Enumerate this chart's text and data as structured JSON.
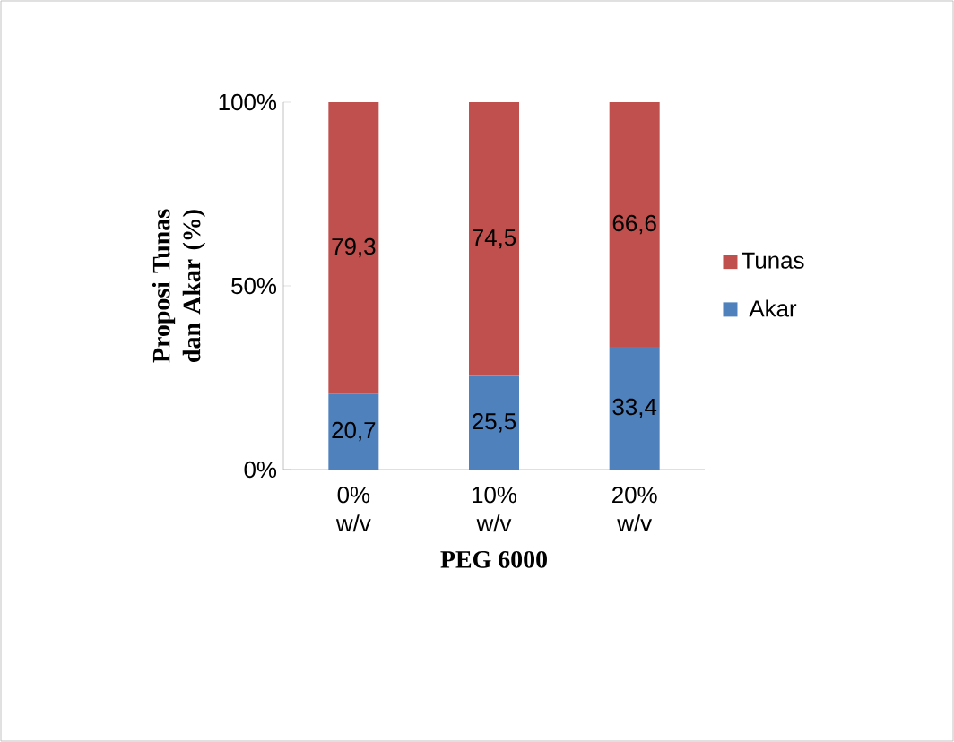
{
  "chart_data": {
    "type": "bar",
    "stacked": true,
    "xlabel": "PEG 6000",
    "ylabel": "Proposi Tunas dan Akar (%)",
    "categories": [
      "0% w/v",
      "10% w/v",
      "20% w/v"
    ],
    "series": [
      {
        "name": "Akar",
        "color": "#4f81bd",
        "values": [
          20.7,
          25.5,
          33.4
        ],
        "value_labels": [
          "20,7",
          "25,5",
          "33,4"
        ]
      },
      {
        "name": "Tunas",
        "color": "#c0504d",
        "values": [
          79.3,
          74.5,
          66.6
        ],
        "value_labels": [
          "79,3",
          "74,5",
          "66,6"
        ]
      }
    ],
    "ylim": [
      0,
      100
    ],
    "yticks": [
      {
        "value": 0,
        "label": "0%"
      },
      {
        "value": 50,
        "label": "50%"
      },
      {
        "value": 100,
        "label": "100%"
      }
    ],
    "legend": "right",
    "grid": false
  }
}
